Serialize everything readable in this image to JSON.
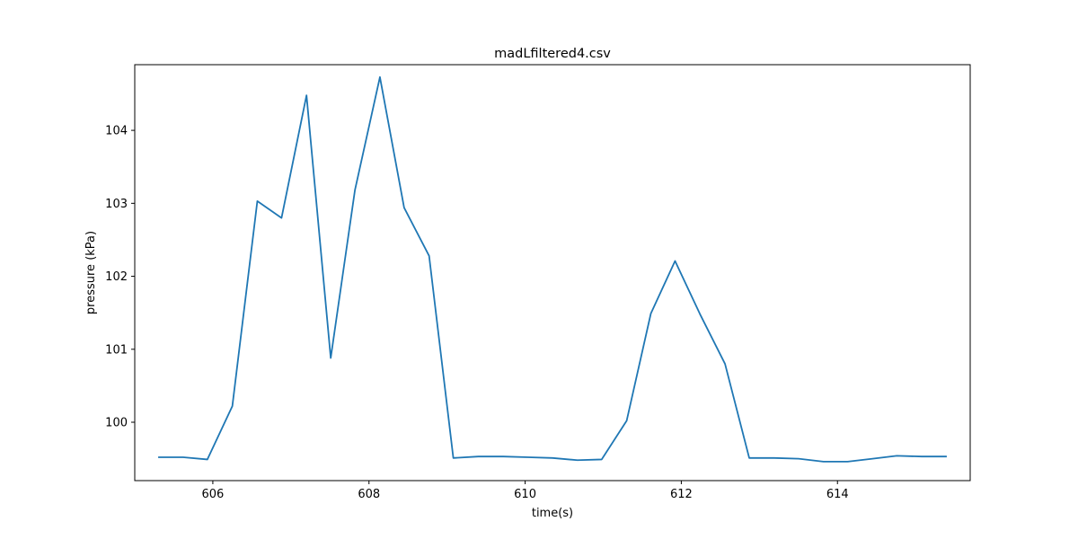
{
  "chart_data": {
    "type": "line",
    "title": "madLfiltered4.csv",
    "xlabel": "time(s)",
    "ylabel": "pressure (kPa)",
    "xlim": [
      605.0,
      615.7
    ],
    "ylim": [
      99.2,
      104.9
    ],
    "xticks": [
      606,
      608,
      610,
      612,
      614
    ],
    "yticks": [
      100,
      101,
      102,
      103,
      104
    ],
    "grid": false,
    "series": [
      {
        "color": "#1f77b4",
        "x": [
          605.3,
          605.62,
          605.93,
          606.25,
          606.57,
          606.88,
          607.2,
          607.51,
          607.82,
          608.14,
          608.45,
          608.77,
          609.08,
          609.4,
          609.72,
          610.04,
          610.35,
          610.67,
          610.98,
          611.3,
          611.61,
          611.92,
          612.24,
          612.56,
          612.87,
          613.19,
          613.5,
          613.82,
          614.13,
          614.45,
          614.76,
          615.08,
          615.4
        ],
        "y": [
          99.52,
          99.52,
          99.49,
          100.22,
          103.03,
          102.8,
          104.48,
          100.88,
          103.18,
          104.73,
          102.94,
          102.28,
          99.51,
          99.53,
          99.53,
          99.52,
          99.51,
          99.48,
          99.49,
          100.02,
          101.49,
          102.21,
          101.48,
          100.8,
          99.51,
          99.51,
          99.5,
          99.46,
          99.46,
          99.5,
          99.54,
          99.53,
          99.53
        ]
      }
    ]
  }
}
